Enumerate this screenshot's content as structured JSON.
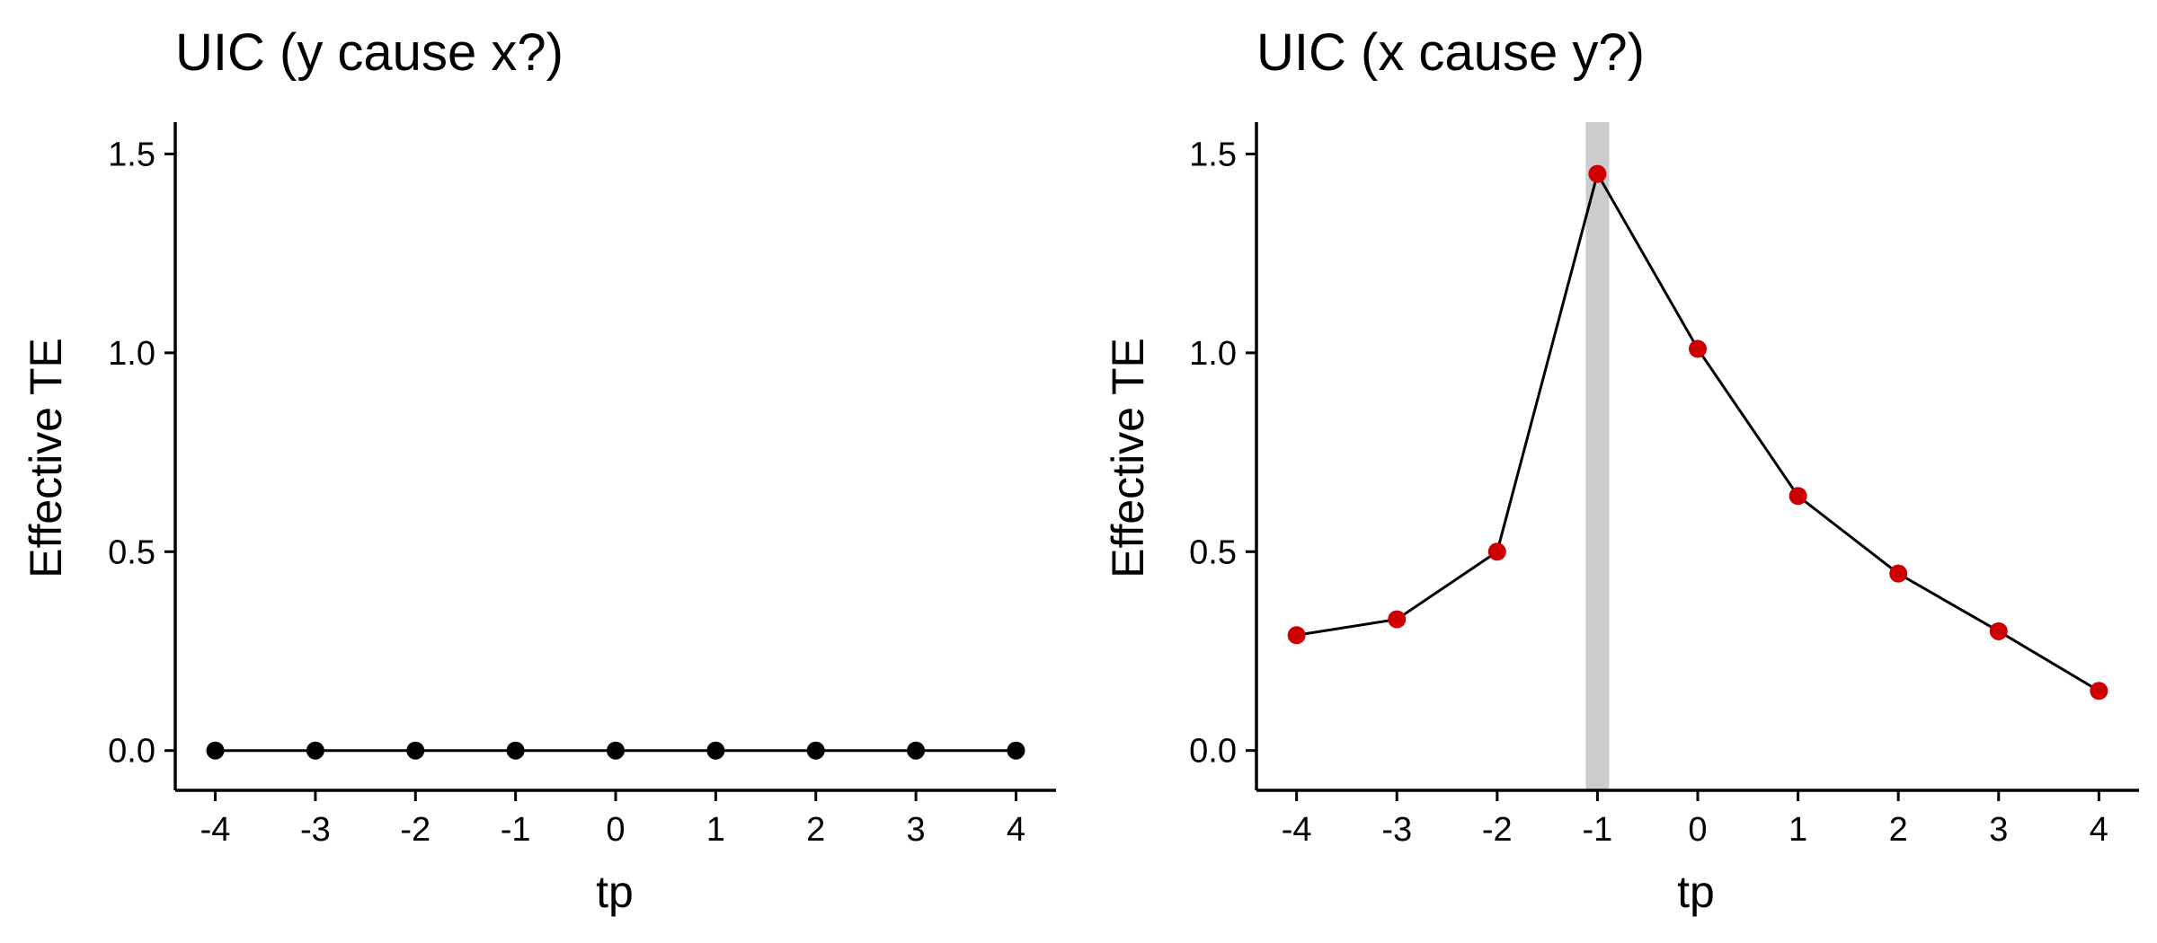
{
  "chart_data": [
    {
      "type": "line",
      "title": "UIC (y cause x?)",
      "xlabel": "tp",
      "ylabel": "Effective TE",
      "x": [
        -4,
        -3,
        -2,
        -1,
        0,
        1,
        2,
        3,
        4
      ],
      "x_ticks": [
        "-4",
        "-3",
        "-2",
        "-1",
        "0",
        "1",
        "2",
        "3",
        "4"
      ],
      "y_ticks": [
        "0.0",
        "0.5",
        "1.0",
        "1.5"
      ],
      "y_tick_values": [
        0,
        0.5,
        1.0,
        1.5
      ],
      "xlim": [
        -4.4,
        4.4
      ],
      "ylim": [
        -0.1,
        1.58
      ],
      "grid": false,
      "highlight_x": null,
      "series": [
        {
          "values": [
            0,
            0,
            0,
            0,
            0,
            0,
            0,
            0,
            0
          ],
          "point_color": "#000000",
          "line_color": "#000000"
        }
      ]
    },
    {
      "type": "line",
      "title": "UIC (x cause y?)",
      "xlabel": "tp",
      "ylabel": "Effective TE",
      "x": [
        -4,
        -3,
        -2,
        -1,
        0,
        1,
        2,
        3,
        4
      ],
      "x_ticks": [
        "-4",
        "-3",
        "-2",
        "-1",
        "0",
        "1",
        "2",
        "3",
        "4"
      ],
      "y_ticks": [
        "0.0",
        "0.5",
        "1.0",
        "1.5"
      ],
      "y_tick_values": [
        0,
        0.5,
        1.0,
        1.5
      ],
      "xlim": [
        -4.4,
        4.4
      ],
      "ylim": [
        -0.1,
        1.58
      ],
      "grid": false,
      "highlight_x": -1,
      "highlight_color": "#cccccc",
      "series": [
        {
          "values": [
            0.29,
            0.33,
            0.5,
            1.45,
            1.01,
            0.64,
            0.445,
            0.3,
            0.15
          ],
          "point_color": "#cc0000",
          "line_color": "#000000"
        }
      ]
    }
  ]
}
